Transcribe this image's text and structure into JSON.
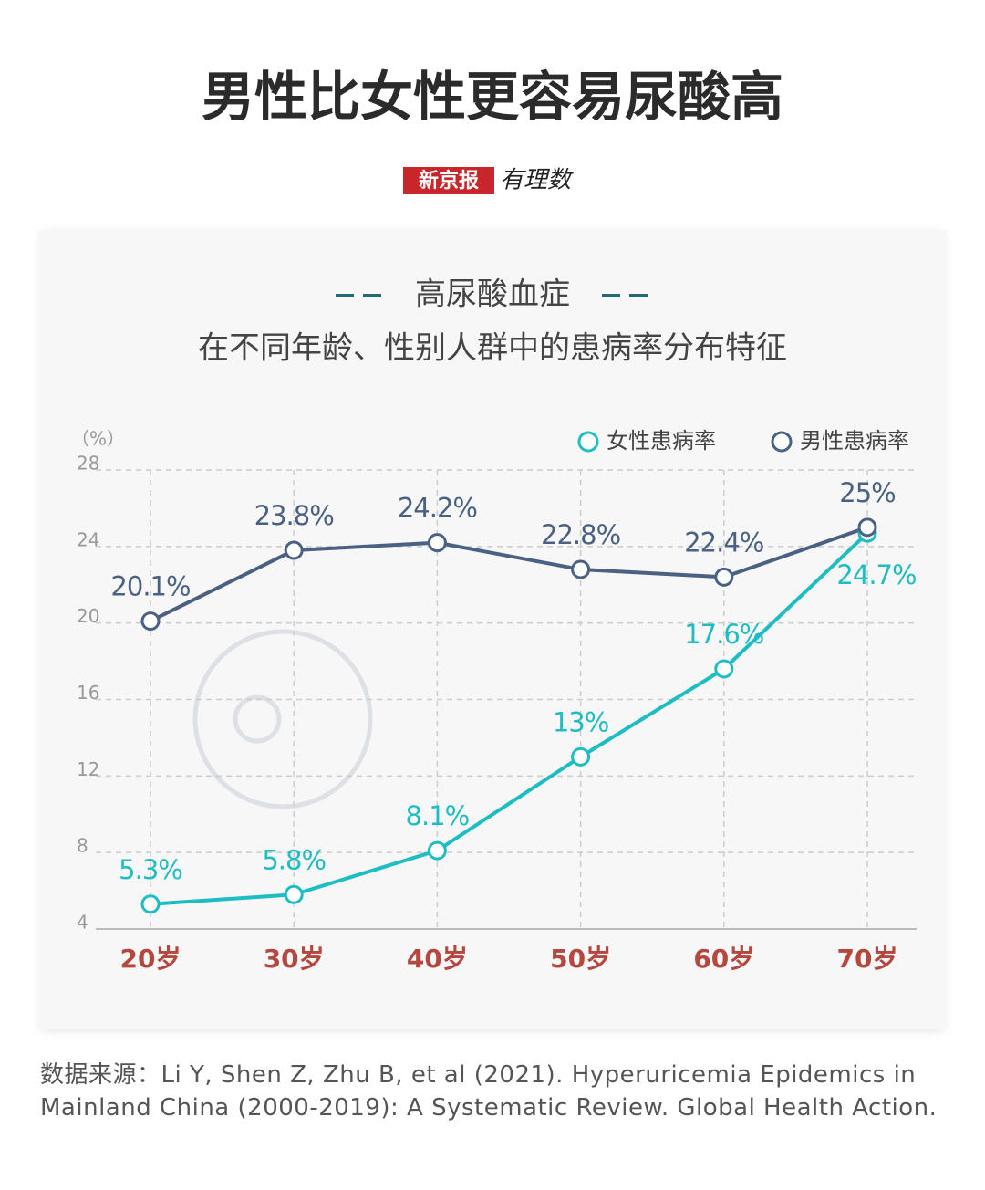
{
  "chart_data": {
    "type": "line",
    "title": "男性比女性更容易尿酸高",
    "logo": [
      "新京报",
      "有理数"
    ],
    "subtitle": "高尿酸血症",
    "caption": "在不同年龄、性别人群中的患病率分布特征",
    "y_label": "（%）",
    "categories": [
      "20岁",
      "30岁",
      "40岁",
      "50岁",
      "60岁",
      "70岁"
    ],
    "series": [
      {
        "name": "女性患病率",
        "color": "#1dbdc3",
        "values": [
          5.3,
          5.8,
          8.1,
          13,
          17.6,
          24.7
        ],
        "value_labels": [
          "5.3%",
          "5.8%",
          "8.1%",
          "13%",
          "17.6%",
          "24.7%"
        ]
      },
      {
        "name": "男性患病率",
        "color": "#4a6184",
        "values": [
          20.1,
          23.8,
          24.2,
          22.8,
          22.4,
          25
        ],
        "value_labels": [
          "20.1%",
          "23.8%",
          "24.2%",
          "22.8%",
          "22.4%",
          "25%"
        ]
      }
    ],
    "ylim": [
      4,
      28
    ],
    "yticks": [
      4,
      8,
      12,
      16,
      20,
      24,
      28
    ],
    "grid": true,
    "legend": "top-right",
    "source": "数据来源：Li Y, Shen Z, Zhu B, et al (2021). Hyperuricemia Epidemics in Mainland China (2000-2019): A Systematic Review. Global Health Action."
  }
}
